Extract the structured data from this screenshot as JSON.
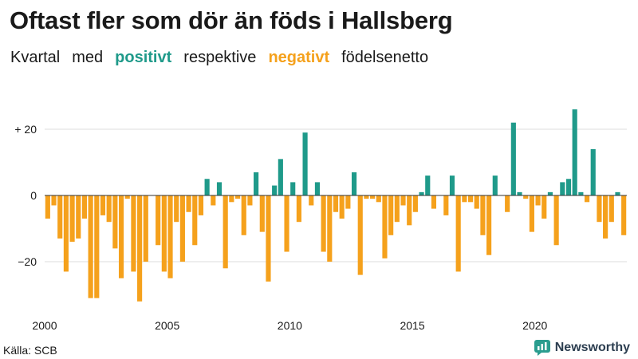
{
  "title": "Oftast fler som dör än föds i Hallsberg",
  "subtitle": {
    "part1": "Kvartal",
    "part2": "med",
    "positive_word": "positivt",
    "part3": "respektive",
    "negative_word": "negativt",
    "part4": "födelsenetto"
  },
  "source": "Källa: SCB",
  "brand": "Newsworthy",
  "colors": {
    "positive": "#1f9a8a",
    "negative": "#f5a11c",
    "grid": "#dddddd",
    "axis": "#333333",
    "logo": "#2a9d8f"
  },
  "chart_data": {
    "type": "bar",
    "title": "Oftast fler som dör än föds i Hallsberg",
    "xlabel": "",
    "ylabel": "",
    "ylim": [
      -35,
      29
    ],
    "start_year": 2000,
    "quarters_per_year": 4,
    "yticks": [
      20,
      0,
      -20
    ],
    "ytick_labels": [
      "+ 20",
      "0",
      "−20"
    ],
    "xticks": [
      2000,
      2005,
      2010,
      2015,
      2020
    ],
    "xtick_labels": [
      "2000",
      "2005",
      "2010",
      "2015",
      "2020"
    ],
    "values": [
      -7,
      -3,
      -13,
      -23,
      -14,
      -13,
      -7,
      -31,
      -31,
      -6,
      -8,
      -16,
      -25,
      -1,
      -23,
      -32,
      -20,
      0,
      -15,
      -23,
      -25,
      -8,
      -20,
      -5,
      -15,
      -6,
      5,
      -3,
      4,
      -22,
      -2,
      -1,
      -12,
      -3,
      7,
      -11,
      -26,
      3,
      11,
      -17,
      4,
      -8,
      19,
      -3,
      4,
      -17,
      -20,
      -5,
      -7,
      -4,
      7,
      -24,
      -1,
      -1,
      -2,
      -19,
      -12,
      -8,
      -3,
      -9,
      -5,
      1,
      6,
      -4,
      0,
      -6,
      6,
      -23,
      -2,
      -2,
      -4,
      -12,
      -18,
      6,
      0,
      -5,
      22,
      1,
      -1,
      -11,
      -3,
      -7,
      1,
      -15,
      4,
      5,
      26,
      1,
      -2,
      14,
      -8,
      -13,
      -8,
      1,
      -12
    ]
  }
}
